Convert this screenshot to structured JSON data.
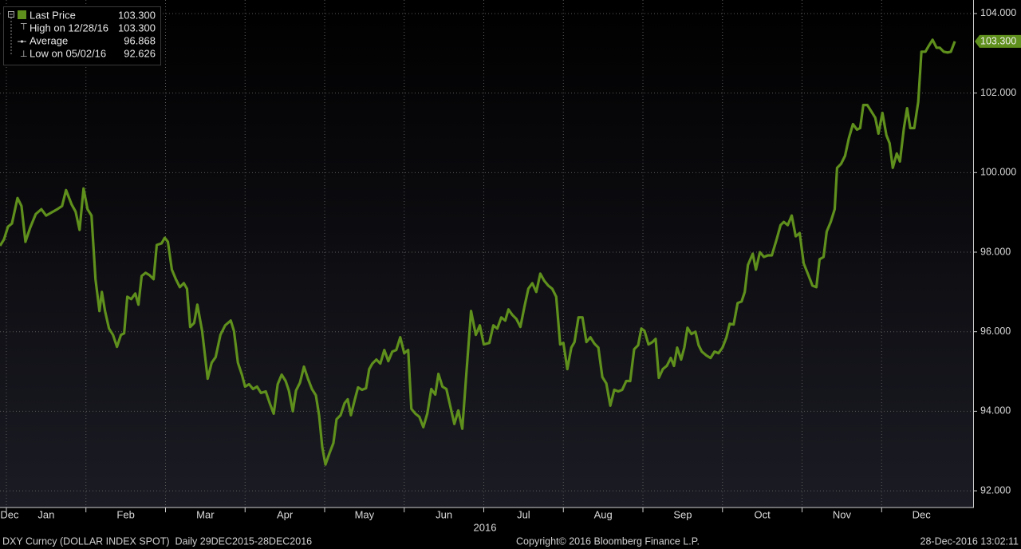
{
  "chart_data": {
    "type": "line",
    "xlabel": "2016",
    "xlim": [
      -0.08,
      12.15
    ],
    "xticks": [
      {
        "value": 0.04,
        "label": "Dec"
      },
      {
        "value": 0.5,
        "label": "Jan"
      },
      {
        "value": 1.5,
        "label": "Feb"
      },
      {
        "value": 2.5,
        "label": "Mar"
      },
      {
        "value": 3.5,
        "label": "Apr"
      },
      {
        "value": 4.5,
        "label": "May"
      },
      {
        "value": 5.5,
        "label": "Jun"
      },
      {
        "value": 6.5,
        "label": "Jul"
      },
      {
        "value": 7.5,
        "label": "Aug"
      },
      {
        "value": 8.5,
        "label": "Sep"
      },
      {
        "value": 9.5,
        "label": "Oct"
      },
      {
        "value": 10.5,
        "label": "Nov"
      },
      {
        "value": 11.5,
        "label": "Dec"
      }
    ],
    "ylim": [
      91.58,
      104.34
    ],
    "yticks": [
      {
        "value": 92,
        "label": "92.000"
      },
      {
        "value": 94,
        "label": "94.000"
      },
      {
        "value": 96,
        "label": "96.000"
      },
      {
        "value": 98,
        "label": "98.000"
      },
      {
        "value": 100,
        "label": "100.000"
      },
      {
        "value": 102,
        "label": "102.000"
      },
      {
        "value": 104,
        "label": "104.000"
      }
    ],
    "grid": true,
    "legend": [
      {
        "name": "Last Price",
        "value_label": "103.300"
      },
      {
        "name": "High on 12/28/16",
        "value_label": "103.300"
      },
      {
        "name": "Average",
        "value_label": "96.868"
      },
      {
        "name": "Low on 05/02/16",
        "value_label": "92.626"
      }
    ],
    "last_price_tag": "103.300",
    "series": [
      {
        "name": "Last Price",
        "color": "#5f8f1c",
        "x": [
          -0.08,
          -0.03,
          0.02,
          0.07,
          0.14,
          0.19,
          0.24,
          0.3,
          0.37,
          0.44,
          0.5,
          0.57,
          0.64,
          0.7,
          0.75,
          0.82,
          0.87,
          0.92,
          0.97,
          1.02,
          1.07,
          1.12,
          1.17,
          1.2,
          1.24,
          1.29,
          1.34,
          1.39,
          1.44,
          1.48,
          1.52,
          1.57,
          1.62,
          1.66,
          1.7,
          1.75,
          1.8,
          1.85,
          1.89,
          1.95,
          1.99,
          2.03,
          2.08,
          2.13,
          2.18,
          2.23,
          2.27,
          2.31,
          2.36,
          2.4,
          2.46,
          2.53,
          2.58,
          2.63,
          2.69,
          2.75,
          2.82,
          2.86,
          2.91,
          2.96,
          3.0,
          3.05,
          3.1,
          3.15,
          3.2,
          3.26,
          3.31,
          3.36,
          3.41,
          3.46,
          3.51,
          3.55,
          3.6,
          3.64,
          3.69,
          3.74,
          3.79,
          3.84,
          3.89,
          3.93,
          3.97,
          4.01,
          4.06,
          4.11,
          4.15,
          4.2,
          4.25,
          4.29,
          4.33,
          4.38,
          4.42,
          4.47,
          4.52,
          4.56,
          4.6,
          4.65,
          4.7,
          4.75,
          4.8,
          4.85,
          4.9,
          4.95,
          5.0,
          5.05,
          5.09,
          5.14,
          5.19,
          5.24,
          5.29,
          5.34,
          5.39,
          5.43,
          5.48,
          5.53,
          5.58,
          5.63,
          5.68,
          5.73,
          5.78,
          5.84,
          5.9,
          5.95,
          6.0,
          6.07,
          6.12,
          6.17,
          6.22,
          6.27,
          6.31,
          6.36,
          6.41,
          6.46,
          6.51,
          6.56,
          6.61,
          6.66,
          6.71,
          6.76,
          6.81,
          6.86,
          6.91,
          6.96,
          7.0,
          7.05,
          7.1,
          7.14,
          7.19,
          7.24,
          7.29,
          7.34,
          7.39,
          7.44,
          7.49,
          7.54,
          7.59,
          7.64,
          7.69,
          7.74,
          7.79,
          7.84,
          7.89,
          7.94,
          7.98,
          8.02,
          8.07,
          8.12,
          8.16,
          8.2,
          8.25,
          8.3,
          8.35,
          8.39,
          8.43,
          8.48,
          8.52,
          8.56,
          8.61,
          8.66,
          8.7,
          8.74,
          8.8,
          8.85,
          8.9,
          8.95,
          9.0,
          9.05,
          9.09,
          9.14,
          9.19,
          9.24,
          9.28,
          9.32,
          9.38,
          9.42,
          9.47,
          9.52,
          9.57,
          9.62,
          9.68,
          9.73,
          9.77,
          9.82,
          9.87,
          9.92,
          9.97,
          10.02,
          10.08,
          10.13,
          10.18,
          10.22,
          10.27,
          10.31,
          10.36,
          10.41,
          10.44,
          10.49,
          10.54,
          10.59,
          10.64,
          10.69,
          10.73,
          10.77,
          10.82,
          10.87,
          10.92,
          10.96,
          11.01,
          11.06,
          11.1,
          11.14,
          11.19,
          11.23,
          11.28,
          11.32,
          11.36,
          11.41,
          11.46,
          11.5,
          11.55,
          11.59,
          11.64,
          11.69,
          11.73,
          11.78,
          11.83,
          11.87,
          11.92
        ],
        "values": [
          98.16,
          98.32,
          98.64,
          98.72,
          99.36,
          99.16,
          98.26,
          98.62,
          98.96,
          99.08,
          98.92,
          99.0,
          99.08,
          99.16,
          99.56,
          99.2,
          99.02,
          98.56,
          99.6,
          99.08,
          98.92,
          97.32,
          96.52,
          97.0,
          96.52,
          96.08,
          95.92,
          95.62,
          95.92,
          95.96,
          96.88,
          96.82,
          96.96,
          96.68,
          97.4,
          97.48,
          97.42,
          97.32,
          98.18,
          98.22,
          98.36,
          98.26,
          97.56,
          97.32,
          97.12,
          97.22,
          97.08,
          96.12,
          96.22,
          96.68,
          96.02,
          94.82,
          95.22,
          95.36,
          95.92,
          96.16,
          96.28,
          96.02,
          95.22,
          94.92,
          94.62,
          94.68,
          94.56,
          94.62,
          94.46,
          94.5,
          94.2,
          93.94,
          94.68,
          94.92,
          94.76,
          94.52,
          94.0,
          94.52,
          94.72,
          95.12,
          94.82,
          94.56,
          94.4,
          93.9,
          93.1,
          92.66,
          92.94,
          93.2,
          93.8,
          93.9,
          94.2,
          94.3,
          93.9,
          94.3,
          94.6,
          94.54,
          94.58,
          95.06,
          95.2,
          95.3,
          95.2,
          95.54,
          95.26,
          95.5,
          95.54,
          95.86,
          95.46,
          95.54,
          94.06,
          93.94,
          93.86,
          93.6,
          93.94,
          94.56,
          94.42,
          94.94,
          94.62,
          94.56,
          94.12,
          93.68,
          94.02,
          93.56,
          94.92,
          96.52,
          95.92,
          96.16,
          95.68,
          95.72,
          96.16,
          96.08,
          96.36,
          96.28,
          96.56,
          96.42,
          96.32,
          96.12,
          96.62,
          97.08,
          97.22,
          97.0,
          97.46,
          97.28,
          97.16,
          97.08,
          96.88,
          95.68,
          95.72,
          95.06,
          95.6,
          95.74,
          96.36,
          96.36,
          95.74,
          95.86,
          95.7,
          95.6,
          94.86,
          94.7,
          94.14,
          94.54,
          94.5,
          94.54,
          94.76,
          94.76,
          95.56,
          95.66,
          96.08,
          96.02,
          95.68,
          95.74,
          95.82,
          94.84,
          95.06,
          95.14,
          95.34,
          95.14,
          95.6,
          95.3,
          95.6,
          96.1,
          95.94,
          96.0,
          95.66,
          95.5,
          95.4,
          95.34,
          95.5,
          95.46,
          95.6,
          95.86,
          96.2,
          96.18,
          96.72,
          96.76,
          97.0,
          97.68,
          97.96,
          97.56,
          98.0,
          97.88,
          97.92,
          97.92,
          98.32,
          98.68,
          98.76,
          98.68,
          98.92,
          98.4,
          98.48,
          97.72,
          97.42,
          97.16,
          97.12,
          97.82,
          97.88,
          98.52,
          98.76,
          99.08,
          100.12,
          100.22,
          100.42,
          100.88,
          101.22,
          101.08,
          101.12,
          101.7,
          101.7,
          101.54,
          101.38,
          100.98,
          101.5,
          100.94,
          100.74,
          100.12,
          100.48,
          100.28,
          101.12,
          101.62,
          101.12,
          101.12,
          101.78,
          103.04,
          103.04,
          103.18,
          103.34,
          103.14,
          103.14,
          103.04,
          103.02,
          103.04,
          103.3
        ]
      }
    ],
    "footer": {
      "left": "DXY Curncy (DOLLAR INDEX SPOT)  Daily 29DEC2015-28DEC2016",
      "center": "Copyright© 2016 Bloomberg Finance L.P.",
      "right": "28-Dec-2016 13:02:11"
    }
  }
}
